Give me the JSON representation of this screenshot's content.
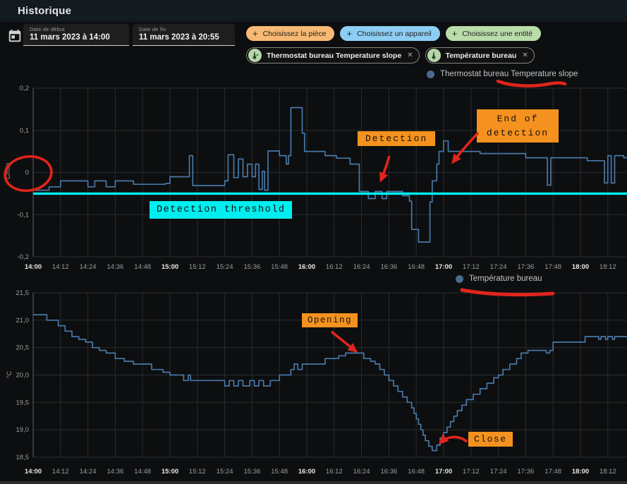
{
  "header": {
    "title": "Historique"
  },
  "toolbar": {
    "date_start": {
      "label": "Date de début",
      "value": "11 mars 2023 à 14:00"
    },
    "date_end": {
      "label": "Date de fin",
      "value": "11 mars 2023 à 20:55"
    },
    "choose_chips": [
      {
        "label": "Choisissez la pièce",
        "color_key": "chip_orange"
      },
      {
        "label": "Choisissez un appareil",
        "color_key": "chip_blue"
      },
      {
        "label": "Choisissez une entité",
        "color_key": "chip_green"
      }
    ],
    "entity_chips": [
      {
        "label": "Thermostat bureau Temperature slope",
        "close": "✕"
      },
      {
        "label": "Température bureau",
        "close": "✕"
      }
    ],
    "plus_glyph": "+"
  },
  "annotations": {
    "detection": "Detection",
    "end_of_detection": "End of detection",
    "detection_threshold": "Detection threshold",
    "opening": "Opening",
    "close": "Close"
  },
  "colors": {
    "orange": "#f5921f",
    "cyan": "#00eef0",
    "red": "#e0251c",
    "series_blue": "#4878a8",
    "legend_dot": "#4a6a8f",
    "chip_orange": "#f8b974",
    "chip_blue": "#8ecef5",
    "chip_green": "#b9dcaa",
    "grid": "#292c2f",
    "axis": "#5e6164",
    "tick_text": "#9b9ea0",
    "tick_text_bold": "#e8e9ea"
  },
  "chart_data": [
    {
      "type": "line",
      "legend": "Thermostat bureau Temperature slope",
      "ylabel": "°C/min",
      "ylim": [
        -0.2,
        0.2
      ],
      "yticks": [
        {
          "v": 0.2,
          "label": "0,2"
        },
        {
          "v": 0.1,
          "label": "0,1"
        },
        {
          "v": 0,
          "label": "0"
        },
        {
          "v": -0.1,
          "label": "-0,1"
        },
        {
          "v": -0.2,
          "label": "-0,2"
        }
      ],
      "xticks": [
        {
          "t": 0,
          "label": "14:00",
          "bold": true
        },
        {
          "t": 12,
          "label": "14:12"
        },
        {
          "t": 24,
          "label": "14:24"
        },
        {
          "t": 36,
          "label": "14:36"
        },
        {
          "t": 48,
          "label": "14:48"
        },
        {
          "t": 60,
          "label": "15:00",
          "bold": true
        },
        {
          "t": 72,
          "label": "15:12"
        },
        {
          "t": 84,
          "label": "15:24"
        },
        {
          "t": 96,
          "label": "15:36"
        },
        {
          "t": 108,
          "label": "15:48"
        },
        {
          "t": 120,
          "label": "16:00",
          "bold": true
        },
        {
          "t": 132,
          "label": "16:12"
        },
        {
          "t": 144,
          "label": "16:24"
        },
        {
          "t": 156,
          "label": "16:36"
        },
        {
          "t": 168,
          "label": "16:48"
        },
        {
          "t": 180,
          "label": "17:00",
          "bold": true
        },
        {
          "t": 192,
          "label": "17:12"
        },
        {
          "t": 204,
          "label": "17:24"
        },
        {
          "t": 216,
          "label": "17:36"
        },
        {
          "t": 228,
          "label": "17:48"
        },
        {
          "t": 240,
          "label": "18:00",
          "bold": true
        },
        {
          "t": 252,
          "label": "18:12"
        }
      ],
      "threshold": {
        "value": -0.05,
        "color_key": "cyan"
      },
      "series": [
        {
          "name": "Thermostat bureau Temperature slope",
          "points": [
            [
              0,
              -0.042
            ],
            [
              7,
              -0.034
            ],
            [
              12,
              -0.02
            ],
            [
              24,
              -0.034
            ],
            [
              27,
              -0.02
            ],
            [
              32,
              -0.034
            ],
            [
              36,
              -0.02
            ],
            [
              44,
              -0.028
            ],
            [
              58,
              -0.026
            ],
            [
              60,
              -0.01
            ],
            [
              68.5,
              0.04
            ],
            [
              70,
              -0.031
            ],
            [
              84,
              -0.02
            ],
            [
              85.5,
              0.042
            ],
            [
              88,
              -0.012
            ],
            [
              90,
              0.032
            ],
            [
              92,
              -0.01
            ],
            [
              94,
              0.02
            ],
            [
              96,
              -0.01
            ],
            [
              97.5,
              0.02
            ],
            [
              99,
              -0.04
            ],
            [
              100.5,
              0.003
            ],
            [
              101.5,
              -0.042
            ],
            [
              103,
              0.051
            ],
            [
              108,
              0.04
            ],
            [
              111,
              0.02
            ],
            [
              112,
              0.04
            ],
            [
              113,
              0.154
            ],
            [
              118,
              0.093
            ],
            [
              119,
              0.05
            ],
            [
              128,
              0.04
            ],
            [
              133,
              0.034
            ],
            [
              139,
              0.02
            ],
            [
              143,
              -0.045
            ],
            [
              147,
              -0.062
            ],
            [
              150,
              -0.045
            ],
            [
              153,
              -0.062
            ],
            [
              155,
              -0.045
            ],
            [
              162,
              -0.055
            ],
            [
              165,
              -0.068
            ],
            [
              166,
              -0.135
            ],
            [
              169,
              -0.165
            ],
            [
              174,
              -0.07
            ],
            [
              175,
              -0.02
            ],
            [
              177,
              0.02
            ],
            [
              178,
              0.05
            ],
            [
              180,
              0.075
            ],
            [
              182,
              0.05
            ],
            [
              196,
              0.045
            ],
            [
              216,
              0.035
            ],
            [
              225.5,
              -0.03
            ],
            [
              227,
              0.035
            ],
            [
              243,
              0.028
            ],
            [
              250.5,
              -0.025
            ],
            [
              252,
              0.04
            ],
            [
              253.5,
              -0.025
            ],
            [
              255,
              0.04
            ],
            [
              259,
              0.035
            ]
          ]
        }
      ]
    },
    {
      "type": "line",
      "legend": "Température bureau",
      "ylabel": "°C",
      "ylim": [
        18.5,
        21.5
      ],
      "yticks": [
        {
          "v": 21.5,
          "label": "21,5"
        },
        {
          "v": 21.0,
          "label": "21,0"
        },
        {
          "v": 20.5,
          "label": "20,5"
        },
        {
          "v": 20.0,
          "label": "20,0"
        },
        {
          "v": 19.5,
          "label": "19,5"
        },
        {
          "v": 19.0,
          "label": "19,0"
        },
        {
          "v": 18.5,
          "label": "18,5"
        }
      ],
      "xticks": [
        {
          "t": 0,
          "label": "14:00",
          "bold": true
        },
        {
          "t": 12,
          "label": "14:12"
        },
        {
          "t": 24,
          "label": "14:24"
        },
        {
          "t": 36,
          "label": "14:36"
        },
        {
          "t": 48,
          "label": "14:48"
        },
        {
          "t": 60,
          "label": "15:00",
          "bold": true
        },
        {
          "t": 72,
          "label": "15:12"
        },
        {
          "t": 84,
          "label": "15:24"
        },
        {
          "t": 96,
          "label": "15:36"
        },
        {
          "t": 108,
          "label": "15:48"
        },
        {
          "t": 120,
          "label": "16:00",
          "bold": true
        },
        {
          "t": 132,
          "label": "16:12"
        },
        {
          "t": 144,
          "label": "16:24"
        },
        {
          "t": 156,
          "label": "16:36"
        },
        {
          "t": 168,
          "label": "16:48"
        },
        {
          "t": 180,
          "label": "17:00",
          "bold": true
        },
        {
          "t": 192,
          "label": "17:12"
        },
        {
          "t": 204,
          "label": "17:24"
        },
        {
          "t": 216,
          "label": "17:36"
        },
        {
          "t": 228,
          "label": "17:48"
        },
        {
          "t": 240,
          "label": "18:00",
          "bold": true
        },
        {
          "t": 252,
          "label": "18:12"
        }
      ],
      "series": [
        {
          "name": "Température bureau",
          "points": [
            [
              0,
              21.1
            ],
            [
              6,
              21.0
            ],
            [
              11,
              20.9
            ],
            [
              14,
              20.8
            ],
            [
              17,
              20.7
            ],
            [
              20,
              20.65
            ],
            [
              23,
              20.6
            ],
            [
              26,
              20.5
            ],
            [
              29,
              20.45
            ],
            [
              32,
              20.4
            ],
            [
              36,
              20.3
            ],
            [
              40,
              20.25
            ],
            [
              44,
              20.2
            ],
            [
              52,
              20.1
            ],
            [
              57,
              20.05
            ],
            [
              60,
              20.0
            ],
            [
              66,
              19.9
            ],
            [
              68,
              20.0
            ],
            [
              69,
              19.9
            ],
            [
              84,
              19.8
            ],
            [
              86,
              19.9
            ],
            [
              88,
              19.8
            ],
            [
              90,
              19.9
            ],
            [
              92,
              19.8
            ],
            [
              95,
              19.9
            ],
            [
              97,
              19.8
            ],
            [
              99,
              19.9
            ],
            [
              101,
              19.8
            ],
            [
              104,
              19.9
            ],
            [
              108,
              20.0
            ],
            [
              113,
              20.1
            ],
            [
              114.5,
              20.2
            ],
            [
              116,
              20.1
            ],
            [
              118,
              20.2
            ],
            [
              128,
              20.3
            ],
            [
              134,
              20.35
            ],
            [
              137,
              20.4
            ],
            [
              145,
              20.3
            ],
            [
              148,
              20.25
            ],
            [
              150,
              20.2
            ],
            [
              152,
              20.1
            ],
            [
              154,
              20.0
            ],
            [
              156,
              19.9
            ],
            [
              158,
              19.8
            ],
            [
              160,
              19.7
            ],
            [
              162,
              19.6
            ],
            [
              164,
              19.5
            ],
            [
              166,
              19.4
            ],
            [
              167,
              19.3
            ],
            [
              168,
              19.2
            ],
            [
              169,
              19.1
            ],
            [
              170,
              19.0
            ],
            [
              171,
              18.9
            ],
            [
              172,
              18.8
            ],
            [
              173.5,
              18.7
            ],
            [
              175,
              18.62
            ],
            [
              177,
              18.72
            ],
            [
              178.5,
              18.85
            ],
            [
              180,
              18.95
            ],
            [
              181.5,
              19.05
            ],
            [
              183,
              19.15
            ],
            [
              184.5,
              19.25
            ],
            [
              186,
              19.35
            ],
            [
              188,
              19.45
            ],
            [
              190,
              19.55
            ],
            [
              193,
              19.65
            ],
            [
              196,
              19.75
            ],
            [
              199,
              19.85
            ],
            [
              202,
              19.95
            ],
            [
              204,
              20.0
            ],
            [
              206,
              20.1
            ],
            [
              209,
              20.2
            ],
            [
              212,
              20.3
            ],
            [
              214,
              20.4
            ],
            [
              217,
              20.45
            ],
            [
              225,
              20.4
            ],
            [
              226.5,
              20.45
            ],
            [
              228,
              20.6
            ],
            [
              242,
              20.7
            ],
            [
              248,
              20.65
            ],
            [
              249,
              20.7
            ],
            [
              251,
              20.65
            ],
            [
              252,
              20.7
            ],
            [
              254,
              20.65
            ],
            [
              255,
              20.7
            ],
            [
              259,
              20.7
            ]
          ]
        }
      ]
    }
  ]
}
